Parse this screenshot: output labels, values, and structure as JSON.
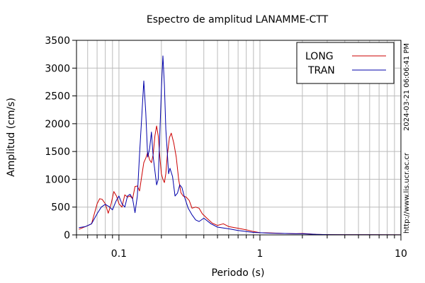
{
  "chart_data": {
    "type": "line",
    "title": "Espectro de amplitud LANAMME-CTT",
    "xlabel": "Periodo (s)",
    "ylabel": "Amplitud (cm/s)",
    "x_scale": "log",
    "xlim": [
      0.05,
      10
    ],
    "ylim": [
      0,
      3500
    ],
    "x_ticks": [
      0.1,
      1,
      10
    ],
    "x_tick_labels": [
      "0.1",
      "1",
      "10"
    ],
    "y_ticks": [
      0,
      500,
      1000,
      1500,
      2000,
      2500,
      3000,
      3500
    ],
    "y_tick_labels": [
      "0",
      "500",
      "1000",
      "1500",
      "2000",
      "2500",
      "3000",
      "3500"
    ],
    "grid": true,
    "legend_position": "top-right",
    "side_text": [
      "2024-03-21 06:06:41 PM",
      "http://www.lis.ucr.ac.cr"
    ],
    "series": [
      {
        "name": "LONG",
        "color": "#cc0000",
        "points": [
          [
            0.052,
            100
          ],
          [
            0.058,
            150
          ],
          [
            0.064,
            200
          ],
          [
            0.07,
            560
          ],
          [
            0.073,
            650
          ],
          [
            0.076,
            640
          ],
          [
            0.08,
            560
          ],
          [
            0.084,
            390
          ],
          [
            0.088,
            560
          ],
          [
            0.092,
            780
          ],
          [
            0.096,
            700
          ],
          [
            0.1,
            560
          ],
          [
            0.105,
            500
          ],
          [
            0.11,
            720
          ],
          [
            0.115,
            680
          ],
          [
            0.12,
            700
          ],
          [
            0.125,
            650
          ],
          [
            0.13,
            870
          ],
          [
            0.135,
            880
          ],
          [
            0.14,
            790
          ],
          [
            0.145,
            1050
          ],
          [
            0.15,
            1300
          ],
          [
            0.155,
            1380
          ],
          [
            0.16,
            1480
          ],
          [
            0.165,
            1350
          ],
          [
            0.17,
            1300
          ],
          [
            0.175,
            1450
          ],
          [
            0.18,
            1780
          ],
          [
            0.185,
            1960
          ],
          [
            0.19,
            1780
          ],
          [
            0.195,
            1420
          ],
          [
            0.2,
            1100
          ],
          [
            0.205,
            1000
          ],
          [
            0.21,
            940
          ],
          [
            0.215,
            1100
          ],
          [
            0.22,
            1420
          ],
          [
            0.228,
            1750
          ],
          [
            0.235,
            1830
          ],
          [
            0.245,
            1650
          ],
          [
            0.255,
            1400
          ],
          [
            0.265,
            1000
          ],
          [
            0.275,
            760
          ],
          [
            0.285,
            700
          ],
          [
            0.3,
            680
          ],
          [
            0.315,
            620
          ],
          [
            0.33,
            480
          ],
          [
            0.35,
            500
          ],
          [
            0.37,
            480
          ],
          [
            0.39,
            380
          ],
          [
            0.42,
            300
          ],
          [
            0.46,
            210
          ],
          [
            0.5,
            170
          ],
          [
            0.55,
            200
          ],
          [
            0.6,
            150
          ],
          [
            0.7,
            120
          ],
          [
            0.8,
            90
          ],
          [
            0.9,
            60
          ],
          [
            1.0,
            40
          ],
          [
            1.2,
            35
          ],
          [
            1.5,
            25
          ],
          [
            1.8,
            20
          ],
          [
            2.0,
            25
          ],
          [
            2.5,
            10
          ],
          [
            3.0,
            5
          ],
          [
            4.0,
            3
          ],
          [
            6.0,
            2
          ],
          [
            10.0,
            1
          ]
        ]
      },
      {
        "name": "TRAN",
        "color": "#0000aa",
        "points": [
          [
            0.052,
            130
          ],
          [
            0.058,
            150
          ],
          [
            0.064,
            200
          ],
          [
            0.07,
            380
          ],
          [
            0.075,
            500
          ],
          [
            0.08,
            550
          ],
          [
            0.085,
            510
          ],
          [
            0.09,
            450
          ],
          [
            0.095,
            600
          ],
          [
            0.1,
            700
          ],
          [
            0.105,
            560
          ],
          [
            0.11,
            500
          ],
          [
            0.115,
            700
          ],
          [
            0.12,
            730
          ],
          [
            0.125,
            650
          ],
          [
            0.13,
            400
          ],
          [
            0.135,
            700
          ],
          [
            0.14,
            1450
          ],
          [
            0.145,
            2100
          ],
          [
            0.15,
            2770
          ],
          [
            0.155,
            2200
          ],
          [
            0.16,
            1400
          ],
          [
            0.165,
            1550
          ],
          [
            0.17,
            1850
          ],
          [
            0.175,
            1400
          ],
          [
            0.18,
            1150
          ],
          [
            0.185,
            900
          ],
          [
            0.19,
            1000
          ],
          [
            0.195,
            1800
          ],
          [
            0.2,
            2600
          ],
          [
            0.205,
            3220
          ],
          [
            0.21,
            2700
          ],
          [
            0.215,
            1900
          ],
          [
            0.22,
            1500
          ],
          [
            0.225,
            1100
          ],
          [
            0.23,
            1200
          ],
          [
            0.24,
            1050
          ],
          [
            0.25,
            700
          ],
          [
            0.26,
            750
          ],
          [
            0.27,
            900
          ],
          [
            0.28,
            850
          ],
          [
            0.29,
            700
          ],
          [
            0.31,
            480
          ],
          [
            0.33,
            360
          ],
          [
            0.35,
            270
          ],
          [
            0.37,
            240
          ],
          [
            0.4,
            300
          ],
          [
            0.45,
            200
          ],
          [
            0.5,
            140
          ],
          [
            0.6,
            110
          ],
          [
            0.7,
            80
          ],
          [
            0.8,
            60
          ],
          [
            0.9,
            45
          ],
          [
            1.0,
            40
          ],
          [
            1.2,
            30
          ],
          [
            1.5,
            25
          ],
          [
            1.8,
            20
          ],
          [
            2.0,
            20
          ],
          [
            2.5,
            10
          ],
          [
            3.0,
            5
          ],
          [
            4.0,
            3
          ],
          [
            6.0,
            2
          ],
          [
            10.0,
            1
          ]
        ]
      }
    ]
  }
}
